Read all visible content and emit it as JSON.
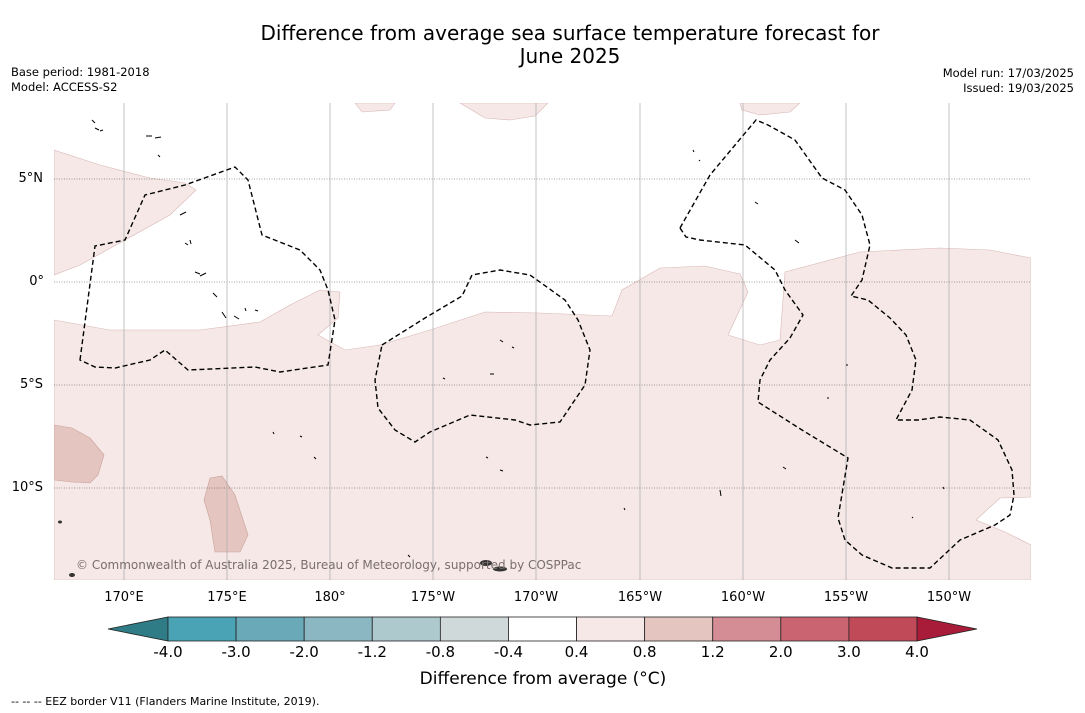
{
  "title": {
    "line1": "Difference from average sea surface temperature forecast for",
    "line2": "June 2025"
  },
  "meta_left": {
    "base_period": "Base period: 1981-2018",
    "model": "Model: ACCESS-S2"
  },
  "meta_right": {
    "model_run": "Model run: 17/03/2025",
    "issued": "Issued: 19/03/2025"
  },
  "lat_labels": [
    "5°N",
    "0°",
    "5°S",
    "10°S"
  ],
  "lon_labels": [
    "170°E",
    "175°E",
    "180°",
    "175°W",
    "170°W",
    "165°W",
    "160°W",
    "155°W",
    "150°W"
  ],
  "copyright": "© Commonwealth of Australia 2025, Bureau of Meteorology, supported by COSPPac",
  "colorbar": {
    "ticks": [
      "-4.0",
      "-3.0",
      "-2.0",
      "-1.2",
      "-0.8",
      "-0.4",
      "0.4",
      "0.8",
      "1.2",
      "2.0",
      "3.0",
      "4.0"
    ],
    "colors": [
      "#2f7c86",
      "#4aa3b5",
      "#6aaab8",
      "#8bb7c2",
      "#adc9cd",
      "#cfd9d9",
      "#ffffff",
      "#f5e8e7",
      "#e5c5c0",
      "#d48d94",
      "#c96470",
      "#c14a59",
      "#a81c3a"
    ],
    "label": "Difference from average (°C)"
  },
  "footer": "--  --  -- EEZ border V11 (Flanders Marine Institute, 2019)."
}
